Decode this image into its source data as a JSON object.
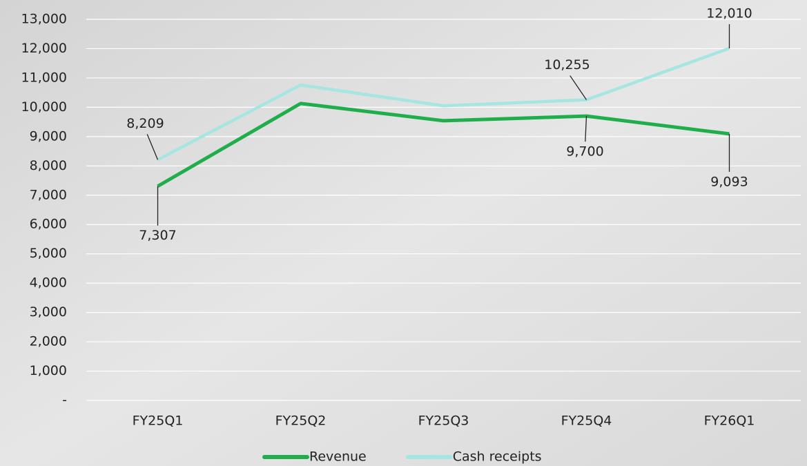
{
  "chart_data": {
    "type": "line",
    "categories": [
      "FY25Q1",
      "FY25Q2",
      "FY25Q3",
      "FY25Q4",
      "FY26Q1"
    ],
    "series": [
      {
        "name": "Revenue",
        "color": "#1fae4b",
        "values": [
          7307,
          10130,
          9540,
          9700,
          9093
        ],
        "value_labels": [
          "7,307",
          null,
          null,
          "9,700",
          "9,093"
        ]
      },
      {
        "name": "Cash receipts",
        "color": "#a6e6e2",
        "values": [
          8209,
          10760,
          10050,
          10255,
          12010
        ],
        "value_labels": [
          "8,209",
          null,
          null,
          "10,255",
          "12,010"
        ]
      }
    ],
    "ylim": [
      0,
      13000
    ],
    "yticks": [
      {
        "value": 0,
        "label": "-"
      },
      {
        "value": 1000,
        "label": "1,000"
      },
      {
        "value": 2000,
        "label": "2,000"
      },
      {
        "value": 3000,
        "label": "3,000"
      },
      {
        "value": 4000,
        "label": "4,000"
      },
      {
        "value": 5000,
        "label": "5,000"
      },
      {
        "value": 6000,
        "label": "6,000"
      },
      {
        "value": 7000,
        "label": "7,000"
      },
      {
        "value": 8000,
        "label": "8,000"
      },
      {
        "value": 9000,
        "label": "9,000"
      },
      {
        "value": 10000,
        "label": "10,000"
      },
      {
        "value": 11000,
        "label": "11,000"
      },
      {
        "value": 12000,
        "label": "12,000"
      },
      {
        "value": 13000,
        "label": "13,000"
      }
    ],
    "grid": true,
    "legend": "bottom"
  }
}
